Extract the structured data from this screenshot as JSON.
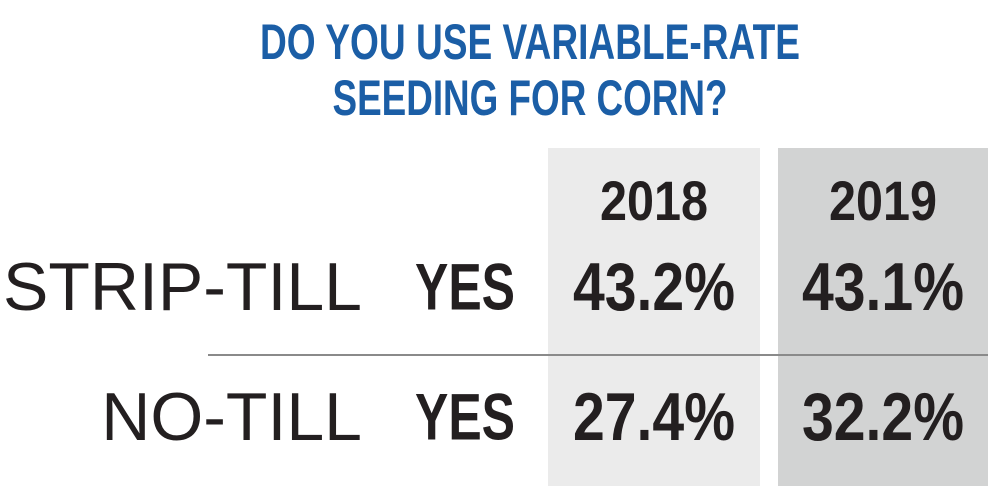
{
  "header": {
    "title_lines": [
      "DO YOU USE VARIABLE-RATE",
      "SEEDING FOR CORN?"
    ]
  },
  "table": {
    "columns": [
      "2018",
      "2019"
    ],
    "rows": [
      {
        "label": "STRIP-TILL",
        "answer": "YES",
        "values": [
          "43.2%",
          "43.1%"
        ]
      },
      {
        "label": "NO-TILL",
        "answer": "YES",
        "values": [
          "27.4%",
          "32.2%"
        ]
      }
    ]
  }
}
